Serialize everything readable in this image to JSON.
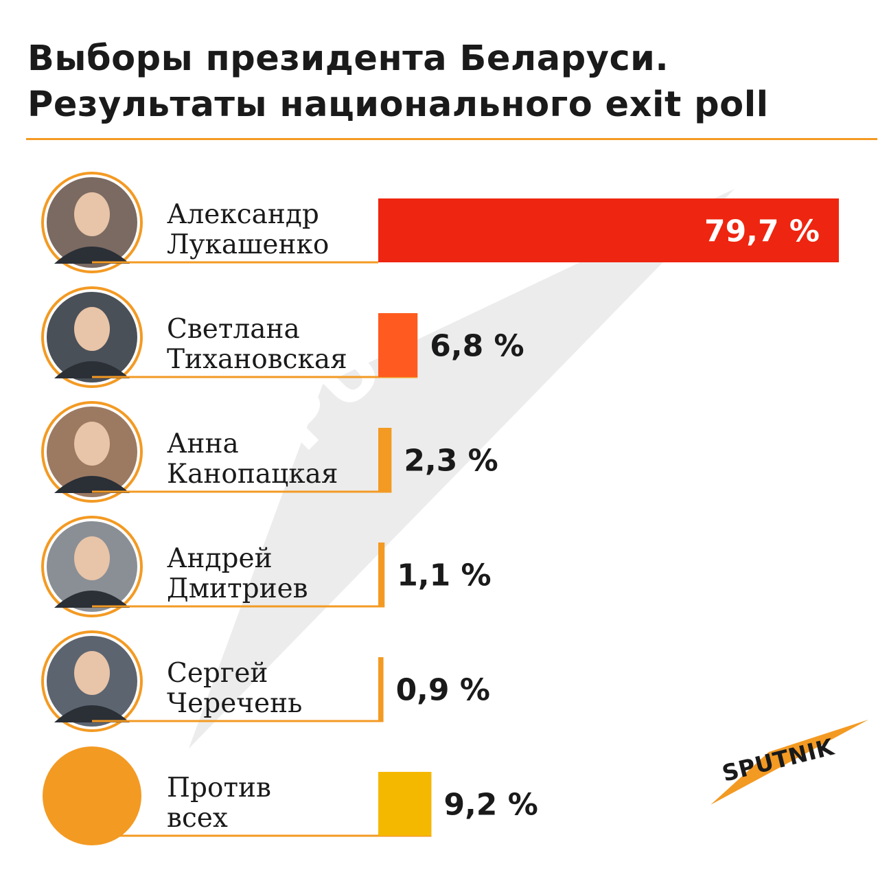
{
  "title": {
    "line1": "Выборы президента Беларуси.",
    "line2": "Результаты национального exit poll"
  },
  "brand": "SPUTNIK",
  "watermark": "SPUTNIK",
  "colors": {
    "accent": "#f39a23",
    "lukashenko": "#ee2510",
    "tikhanovskaya": "#ff5a1f",
    "small": "#f39a23",
    "against": "#f5b800"
  },
  "chart_data": {
    "type": "bar",
    "orientation": "horizontal",
    "categories": [
      "Александр Лукашенко",
      "Светлана Тихановская",
      "Анна Канопацкая",
      "Андрей Дмитриев",
      "Сергей Черечень",
      "Против всех"
    ],
    "values": [
      79.7,
      6.8,
      2.3,
      1.1,
      0.9,
      9.2
    ],
    "value_labels": [
      "79,7 %",
      "6,8 %",
      "2,3 %",
      "1,1 %",
      "0,9 %",
      "9,2 %"
    ],
    "name_lines": [
      [
        "Александр",
        "Лукашенко"
      ],
      [
        "Светлана",
        "Тихановская"
      ],
      [
        "Анна",
        "Канопацкая"
      ],
      [
        "Андрей",
        "Дмитриев"
      ],
      [
        "Сергей",
        "Черечень"
      ],
      [
        "Против",
        "всех"
      ]
    ],
    "bar_colors": [
      "#ee2510",
      "#ff5a1f",
      "#f39a23",
      "#f39a23",
      "#f39a23",
      "#f5b800"
    ]
  }
}
